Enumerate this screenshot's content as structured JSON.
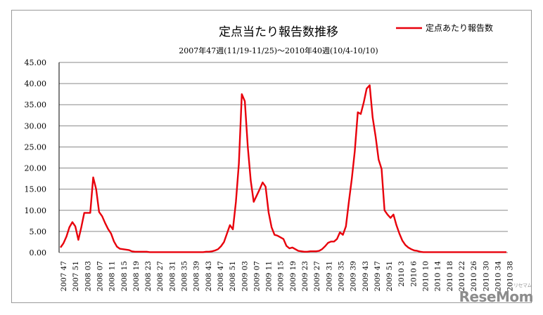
{
  "chart_data": {
    "type": "line",
    "title": "定点当たり報告数推移",
    "subtitle": "2007年47週(11/19-11/25)～2010年40週(10/4-10/10)",
    "xlabel": "",
    "ylabel": "",
    "ylim": [
      0,
      45
    ],
    "yticks": [
      "0.00",
      "5.00",
      "10.00",
      "15.00",
      "20.00",
      "25.00",
      "30.00",
      "35.00",
      "40.00",
      "45.00"
    ],
    "xticks": [
      "2007 47",
      "2007 51",
      "2008 03",
      "2008 07",
      "2008 11",
      "2008 15",
      "2008 19",
      "2008 23",
      "2008 27",
      "2008 31",
      "2008 35",
      "2008 39",
      "2008 43",
      "2008 47",
      "2008 51",
      "2009 03",
      "2009 07",
      "2009 11",
      "2009 15",
      "2009 19",
      "2009 23",
      "2009 27",
      "2009 31",
      "2009 35",
      "2009 39",
      "2009 43",
      "2009 47",
      "2009 51",
      "2010 3",
      "2010 6",
      "2010 10",
      "2010 14",
      "2010 18",
      "2010 22",
      "2010 26",
      "2010 30",
      "2010 34",
      "2010 38"
    ],
    "legend_position": "top-right",
    "series": [
      {
        "name": "定点あたり報告数",
        "color": "#e8000b",
        "values": [
          1.2,
          2.2,
          3.8,
          6.0,
          7.2,
          6.2,
          3.0,
          6.0,
          9.4,
          9.4,
          9.4,
          17.8,
          15.0,
          9.6,
          8.6,
          7.0,
          5.6,
          4.5,
          2.6,
          1.4,
          0.9,
          0.8,
          0.7,
          0.6,
          0.3,
          0.2,
          0.2,
          0.2,
          0.2,
          0.2,
          0.1,
          0.1,
          0.1,
          0.1,
          0.1,
          0.1,
          0.1,
          0.1,
          0.1,
          0.1,
          0.1,
          0.1,
          0.1,
          0.1,
          0.1,
          0.1,
          0.1,
          0.1,
          0.1,
          0.2,
          0.2,
          0.3,
          0.5,
          0.8,
          1.5,
          2.5,
          4.5,
          6.5,
          5.5,
          12.0,
          21.0,
          37.5,
          35.8,
          25.0,
          17.0,
          12.0,
          13.5,
          15.0,
          16.6,
          15.6,
          9.5,
          6.0,
          4.2,
          4.0,
          3.6,
          3.2,
          1.6,
          1.0,
          1.2,
          0.8,
          0.4,
          0.3,
          0.2,
          0.2,
          0.3,
          0.3,
          0.3,
          0.4,
          0.8,
          1.5,
          2.3,
          2.6,
          2.6,
          3.2,
          4.8,
          4.2,
          6.2,
          12.0,
          17.5,
          24.0,
          33.2,
          32.8,
          35.5,
          38.8,
          39.6,
          32.0,
          27.5,
          22.0,
          19.8,
          10.0,
          9.0,
          8.2,
          9.0,
          6.5,
          4.5,
          2.8,
          1.8,
          1.2,
          0.8,
          0.5,
          0.4,
          0.2,
          0.1,
          0.1,
          0.1,
          0.1,
          0.1,
          0.1,
          0.1,
          0.1,
          0.1,
          0.1,
          0.1,
          0.1,
          0.1,
          0.1,
          0.1,
          0.1,
          0.1,
          0.1,
          0.1,
          0.1,
          0.1,
          0.1,
          0.1,
          0.1,
          0.1,
          0.1,
          0.1,
          0.1,
          0.1
        ]
      }
    ]
  },
  "watermark": {
    "text": "ReseMom",
    "sub": "リセマム"
  }
}
